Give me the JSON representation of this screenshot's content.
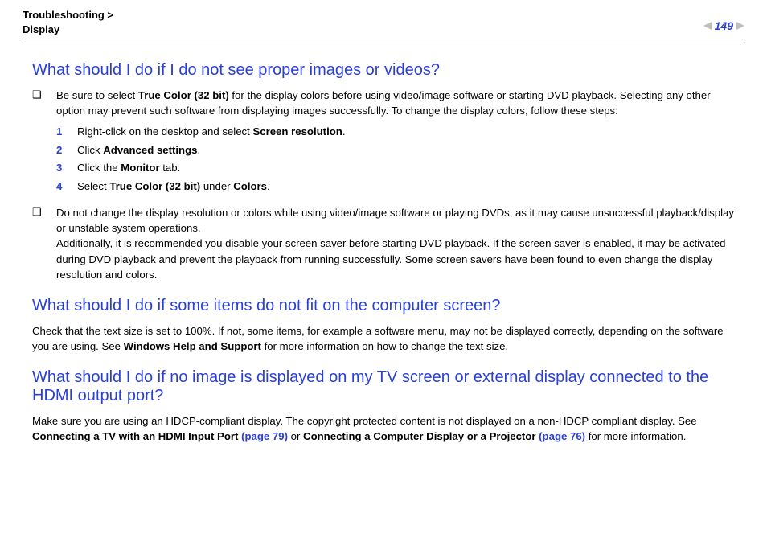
{
  "header": {
    "breadcrumb_line1": "Troubleshooting >",
    "breadcrumb_line2": "Display",
    "page_number": "149"
  },
  "colors": {
    "heading": "#2a3fd6",
    "link": "#2a3fd6",
    "nav_arrow": "#bfbfbf",
    "text": "#000000",
    "background": "#ffffff"
  },
  "section1": {
    "title": "What should I do if I do not see proper images or videos?",
    "bullet1_pre": "Be sure to select ",
    "bullet1_bold1": "True Color (32 bit)",
    "bullet1_post": " for the display colors before using video/image software or starting DVD playback. Selecting any other option may prevent such software from displaying images successfully. To change the display colors, follow these steps:",
    "step1_num": "1",
    "step1_pre": "Right-click on the desktop and select ",
    "step1_bold": "Screen resolution",
    "step1_post": ".",
    "step2_num": "2",
    "step2_pre": "Click ",
    "step2_bold": "Advanced settings",
    "step2_post": ".",
    "step3_num": "3",
    "step3_pre": "Click the ",
    "step3_bold": "Monitor",
    "step3_post": " tab.",
    "step4_num": "4",
    "step4_pre": "Select ",
    "step4_bold1": "True Color (32 bit)",
    "step4_mid": " under ",
    "step4_bold2": "Colors",
    "step4_post": ".",
    "bullet2_p1": "Do not change the display resolution or colors while using video/image software or playing DVDs, as it may cause unsuccessful playback/display or unstable system operations.",
    "bullet2_p2": "Additionally, it is recommended you disable your screen saver before starting DVD playback. If the screen saver is enabled, it may be activated during DVD playback and prevent the playback from running successfully. Some screen savers have been found to even change the display resolution and colors."
  },
  "section2": {
    "title": "What should I do if some items do not fit on the computer screen?",
    "para_pre": "Check that the text size is set to 100%. If not, some items, for example a software menu, may not be displayed correctly, depending on the software you are using. See ",
    "para_bold": "Windows Help and Support",
    "para_post": " for more information on how to change the text size."
  },
  "section3": {
    "title": "What should I do if no image is displayed on my TV screen or external display connected to the HDMI output port?",
    "para_pre": "Make sure you are using an HDCP-compliant display. The copyright protected content is not displayed on a non-HDCP compliant display. See ",
    "para_bold1": "Connecting a TV with an HDMI Input Port ",
    "para_link1": "(page 79)",
    "para_mid": " or ",
    "para_bold2": "Connecting a Computer Display or a Projector ",
    "para_link2": "(page 76)",
    "para_post": " for more information."
  }
}
